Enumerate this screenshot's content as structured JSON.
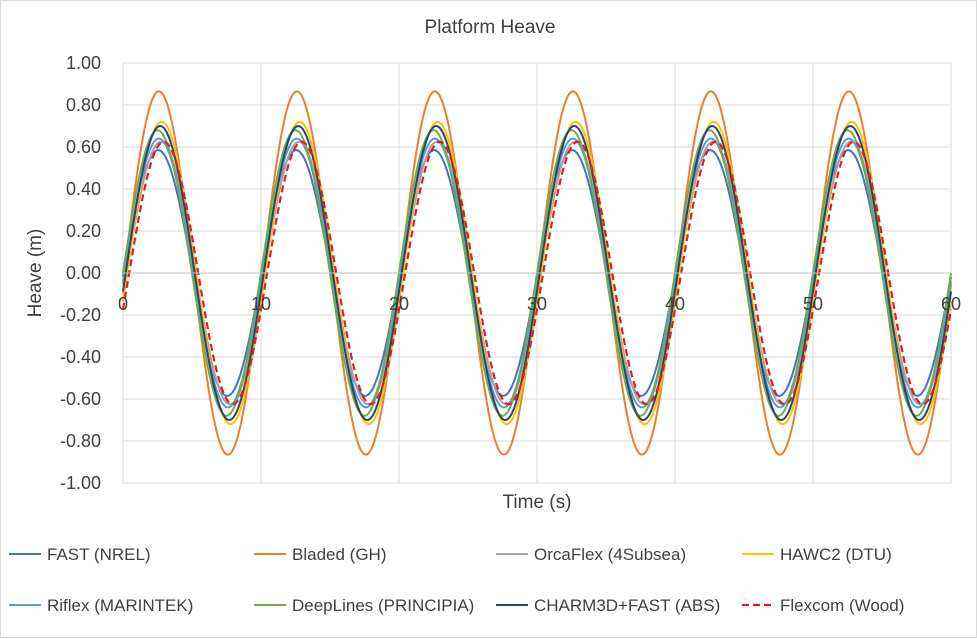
{
  "chart_data": {
    "type": "line",
    "title": "Platform Heave",
    "xlabel": "Time (s)",
    "ylabel": "Heave (m)",
    "xlim": [
      0,
      60
    ],
    "ylim": [
      -1.0,
      1.0
    ],
    "x_ticks": [
      "0",
      "10",
      "20",
      "30",
      "40",
      "50",
      "60"
    ],
    "y_ticks": [
      "1.00",
      "0.80",
      "0.60",
      "0.40",
      "0.20",
      "0.00",
      "-0.20",
      "-0.40",
      "-0.60",
      "-0.80",
      "-1.00"
    ],
    "grid": true,
    "legend_position": "bottom",
    "period_s": 10,
    "series": [
      {
        "name": "FAST (NREL)",
        "color": "#4472c4",
        "style": "solid",
        "amplitude": 0.585,
        "peak_time": 2.55
      },
      {
        "name": "Bladed (GH)",
        "color": "#ed7d31",
        "style": "solid",
        "amplitude": 0.865,
        "peak_time": 2.6
      },
      {
        "name": "OrcaFlex (4Subsea)",
        "color": "#a5a5a5",
        "style": "solid",
        "amplitude": 0.625,
        "peak_time": 2.75
      },
      {
        "name": "HAWC2 (DTU)",
        "color": "#ffc000",
        "style": "solid",
        "amplitude": 0.72,
        "peak_time": 2.8
      },
      {
        "name": "Riflex (MARINTEK)",
        "color": "#5b9bd5",
        "style": "solid",
        "amplitude": 0.64,
        "peak_time": 2.6
      },
      {
        "name": "DeepLines (PRINCIPIA)",
        "color": "#70ad47",
        "style": "solid",
        "amplitude": 0.68,
        "peak_time": 2.5
      },
      {
        "name": "CHARM3D+FAST (ABS)",
        "color": "#264478",
        "style": "solid",
        "amplitude": 0.7,
        "peak_time": 2.7
      },
      {
        "name": "Flexcom (Wood)",
        "color": "#e02020",
        "style": "dashed",
        "amplitude": 0.625,
        "peak_time": 2.95
      }
    ]
  }
}
